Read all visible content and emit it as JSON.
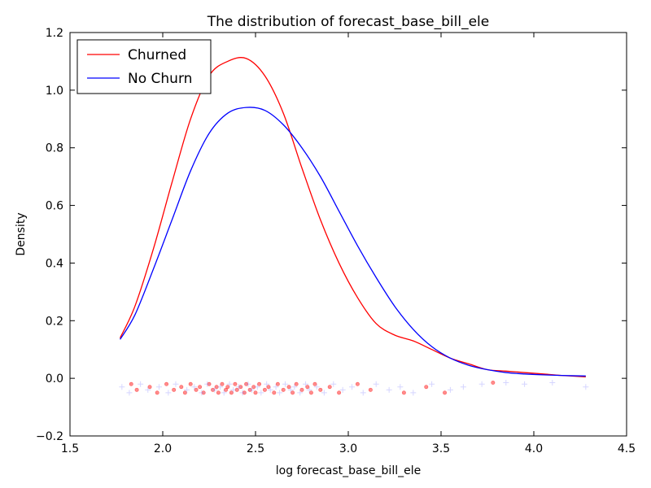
{
  "chart_data": {
    "type": "line",
    "title": "The distribution of forecast_base_bill_ele",
    "xlabel": "log forecast_base_bill_ele",
    "ylabel": "Density",
    "xlim": [
      1.5,
      4.5
    ],
    "ylim": [
      -0.2,
      1.2
    ],
    "xticks": [
      1.5,
      2.0,
      2.5,
      3.0,
      3.5,
      4.0,
      4.5
    ],
    "xtick_labels": [
      "1.5",
      "2.0",
      "2.5",
      "3.0",
      "3.5",
      "4.0",
      "4.5"
    ],
    "yticks": [
      -0.2,
      0.0,
      0.2,
      0.4,
      0.6,
      0.8,
      1.0,
      1.2
    ],
    "ytick_labels": [
      "−0.2",
      "0.0",
      "0.2",
      "0.4",
      "0.6",
      "0.8",
      "1.0",
      "1.2"
    ],
    "grid": false,
    "legend": "top-left",
    "series": [
      {
        "name": "Churned",
        "color": "#ff0000",
        "x": [
          1.77,
          1.85,
          1.95,
          2.05,
          2.15,
          2.25,
          2.35,
          2.45,
          2.55,
          2.65,
          2.75,
          2.85,
          2.95,
          3.05,
          3.15,
          3.25,
          3.35,
          3.45,
          3.55,
          3.65,
          3.75,
          3.85,
          3.95,
          4.05,
          4.15,
          4.28
        ],
        "y": [
          0.14,
          0.25,
          0.45,
          0.68,
          0.9,
          1.05,
          1.1,
          1.11,
          1.05,
          0.92,
          0.73,
          0.55,
          0.4,
          0.28,
          0.19,
          0.15,
          0.13,
          0.1,
          0.07,
          0.05,
          0.03,
          0.025,
          0.02,
          0.015,
          0.01,
          0.005
        ]
      },
      {
        "name": "No Churn",
        "color": "#0000ff",
        "x": [
          1.77,
          1.85,
          1.95,
          2.05,
          2.15,
          2.25,
          2.35,
          2.45,
          2.55,
          2.65,
          2.75,
          2.85,
          2.95,
          3.05,
          3.15,
          3.25,
          3.35,
          3.45,
          3.55,
          3.65,
          3.75,
          3.85,
          3.95,
          4.05,
          4.15,
          4.28
        ],
        "y": [
          0.135,
          0.22,
          0.38,
          0.55,
          0.72,
          0.85,
          0.92,
          0.94,
          0.93,
          0.88,
          0.8,
          0.7,
          0.58,
          0.46,
          0.35,
          0.25,
          0.17,
          0.11,
          0.07,
          0.045,
          0.03,
          0.02,
          0.015,
          0.012,
          0.01,
          0.008
        ]
      }
    ],
    "rug": [
      {
        "name": "Churned",
        "color": "#ff0000",
        "marker": "dot",
        "x": [
          1.83,
          1.86,
          1.93,
          1.97,
          2.02,
          2.06,
          2.1,
          2.12,
          2.15,
          2.18,
          2.2,
          2.22,
          2.25,
          2.27,
          2.29,
          2.3,
          2.32,
          2.34,
          2.35,
          2.37,
          2.39,
          2.4,
          2.42,
          2.44,
          2.45,
          2.47,
          2.49,
          2.5,
          2.52,
          2.55,
          2.57,
          2.6,
          2.62,
          2.65,
          2.68,
          2.7,
          2.72,
          2.75,
          2.78,
          2.8,
          2.82,
          2.85,
          2.9,
          2.95,
          3.05,
          3.12,
          3.3,
          3.42,
          3.52,
          3.78
        ],
        "y": [
          -0.02,
          -0.04,
          -0.03,
          -0.05,
          -0.02,
          -0.04,
          -0.03,
          -0.05,
          -0.02,
          -0.04,
          -0.03,
          -0.05,
          -0.02,
          -0.04,
          -0.03,
          -0.05,
          -0.02,
          -0.04,
          -0.03,
          -0.05,
          -0.02,
          -0.04,
          -0.03,
          -0.05,
          -0.02,
          -0.04,
          -0.03,
          -0.05,
          -0.02,
          -0.04,
          -0.03,
          -0.05,
          -0.02,
          -0.04,
          -0.03,
          -0.05,
          -0.02,
          -0.04,
          -0.03,
          -0.05,
          -0.02,
          -0.04,
          -0.03,
          -0.05,
          -0.02,
          -0.04,
          -0.05,
          -0.03,
          -0.05,
          -0.015
        ]
      },
      {
        "name": "No Churn",
        "color": "#8888ff",
        "marker": "plus",
        "x": [
          1.78,
          1.82,
          1.88,
          1.92,
          1.98,
          2.03,
          2.07,
          2.13,
          2.17,
          2.21,
          2.24,
          2.28,
          2.31,
          2.33,
          2.36,
          2.38,
          2.41,
          2.43,
          2.46,
          2.48,
          2.51,
          2.53,
          2.56,
          2.58,
          2.61,
          2.63,
          2.66,
          2.69,
          2.71,
          2.74,
          2.77,
          2.79,
          2.83,
          2.87,
          2.92,
          2.97,
          3.02,
          3.08,
          3.15,
          3.22,
          3.28,
          3.35,
          3.45,
          3.55,
          3.62,
          3.72,
          3.85,
          3.95,
          4.1,
          4.28
        ],
        "y": [
          -0.03,
          -0.05,
          -0.02,
          -0.04,
          -0.03,
          -0.05,
          -0.02,
          -0.04,
          -0.03,
          -0.05,
          -0.02,
          -0.04,
          -0.03,
          -0.05,
          -0.02,
          -0.04,
          -0.03,
          -0.05,
          -0.02,
          -0.04,
          -0.03,
          -0.05,
          -0.02,
          -0.04,
          -0.03,
          -0.05,
          -0.02,
          -0.04,
          -0.03,
          -0.05,
          -0.02,
          -0.04,
          -0.03,
          -0.05,
          -0.02,
          -0.04,
          -0.03,
          -0.05,
          -0.02,
          -0.04,
          -0.03,
          -0.05,
          -0.02,
          -0.04,
          -0.03,
          -0.02,
          -0.015,
          -0.02,
          -0.015,
          -0.03
        ]
      }
    ]
  }
}
